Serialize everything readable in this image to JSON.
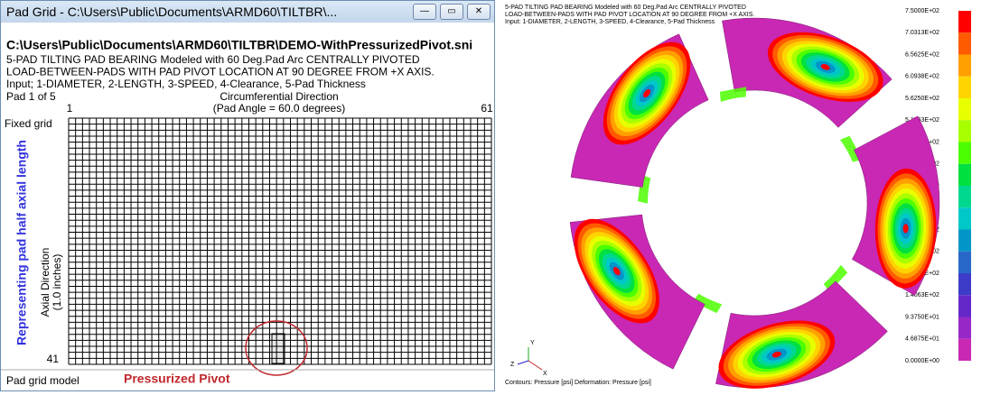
{
  "window": {
    "title": "Pad Grid - C:\\Users\\Public\\Documents\\ARMD60\\TILTBR\\...",
    "file_path": "C:\\Users\\Public\\Documents\\ARMD60\\TILTBR\\DEMO-WithPressurizedPivot.sni",
    "lines": [
      "5-PAD TILTING PAD BEARING Modeled with 60 Deg.Pad Arc CENTRALLY PIVOTED",
      "LOAD-BETWEEN-PADS WITH PAD PIVOT LOCATION AT 90 DEGREE FROM +X AXIS.",
      "Input; 1-DIAMETER, 2-LENGTH, 3-SPEED, 4-Clearance, 5-Pad Thickness"
    ],
    "pad_label": "Pad 1 of 5",
    "x_title": "Circumferential Direction",
    "x_subtitle": "(Pad Angle = 60.0 degrees)",
    "col_start": 1,
    "col_end": 61,
    "row_end": 41,
    "fixed_grid": "Fixed grid",
    "y_title": "Axial Direction",
    "y_subtitle": "(1.0 inches)",
    "side_annotation": "Representing pad half axial length",
    "status": "Pad grid model",
    "pivot_annotation": "Pressurized Pivot"
  },
  "plot": {
    "header": [
      "5-PAD TILTING PAD BEARING Modeled with 60 Deg.Pad Arc CENTRALLY PIVOTED",
      "LOAD-BETWEEN-PADS WITH PAD PIVOT LOCATION AT 90 DEGREE FROM +X AXIS.",
      "Input: 1-DIAMETER, 2-LENGTH, 3-SPEED, 4-Clearance, 5-Pad Thickness"
    ],
    "footer": "Contours: Pressure [psi]    Deformation: Pressure [psi]",
    "axis_x": "X",
    "axis_y": "Y",
    "axis_z": "Z",
    "legend": [
      "7.5000E+02",
      "7.0313E+02",
      "6.5625E+02",
      "6.0938E+02",
      "5.6250E+02",
      "5.1563E+02",
      "4.6875E+02",
      "4.2188E+02",
      "3.7500E+02",
      "3.2813E+02",
      "2.8125E+02",
      "2.3438E+02",
      "1.8750E+02",
      "1.4063E+02",
      "9.3750E+01",
      "4.6875E+01",
      "0.0000E+00"
    ]
  }
}
